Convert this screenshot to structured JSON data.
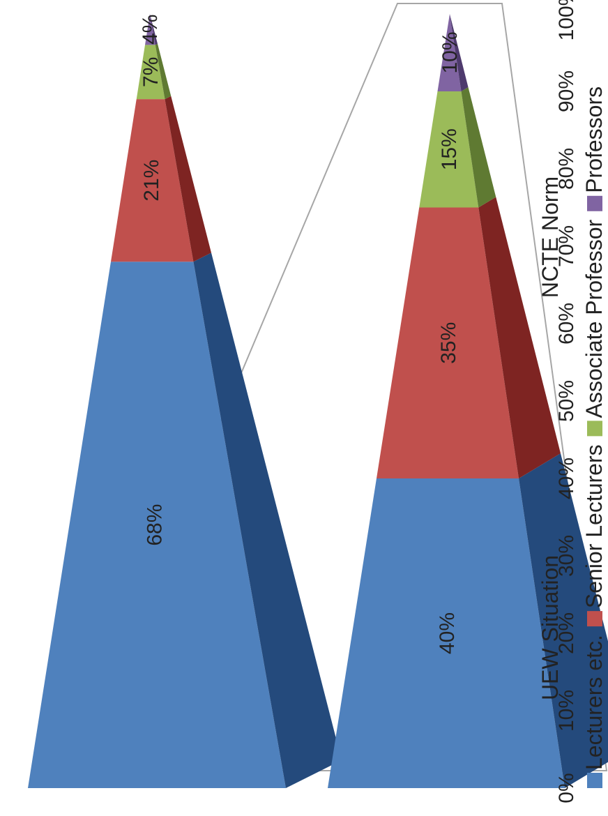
{
  "chart_data": {
    "type": "bar",
    "variant": "3d-stacked-pyramid-100-percent",
    "orientation": "rotated 90 degrees (value axis runs along page bottom)",
    "categories": [
      "UEW Situation",
      "NCTE Norm"
    ],
    "series": [
      {
        "name": "Lecturers etc.",
        "values": [
          68,
          40
        ],
        "labels": [
          "68%",
          "40%"
        ],
        "color": "#4f81bd",
        "dark": "#244a7c"
      },
      {
        "name": "Senior Lecturers",
        "values": [
          21,
          35
        ],
        "labels": [
          "21%",
          "35%"
        ],
        "color": "#c0504d",
        "dark": "#7e2422"
      },
      {
        "name": "Associate Professor",
        "values": [
          7,
          15
        ],
        "labels": [
          "7%",
          "15%"
        ],
        "color": "#9bbb59",
        "dark": "#5f7a32"
      },
      {
        "name": "Professors",
        "values": [
          4,
          10
        ],
        "labels": [
          "4%",
          "10%"
        ],
        "color": "#8064a2",
        "dark": "#4e3a6d"
      }
    ],
    "ylim": [
      0,
      100
    ],
    "yticks": [
      "0%",
      "10%",
      "20%",
      "30%",
      "40%",
      "50%",
      "60%",
      "70%",
      "80%",
      "90%",
      "100%"
    ],
    "legend": "bottom",
    "grid": false
  }
}
